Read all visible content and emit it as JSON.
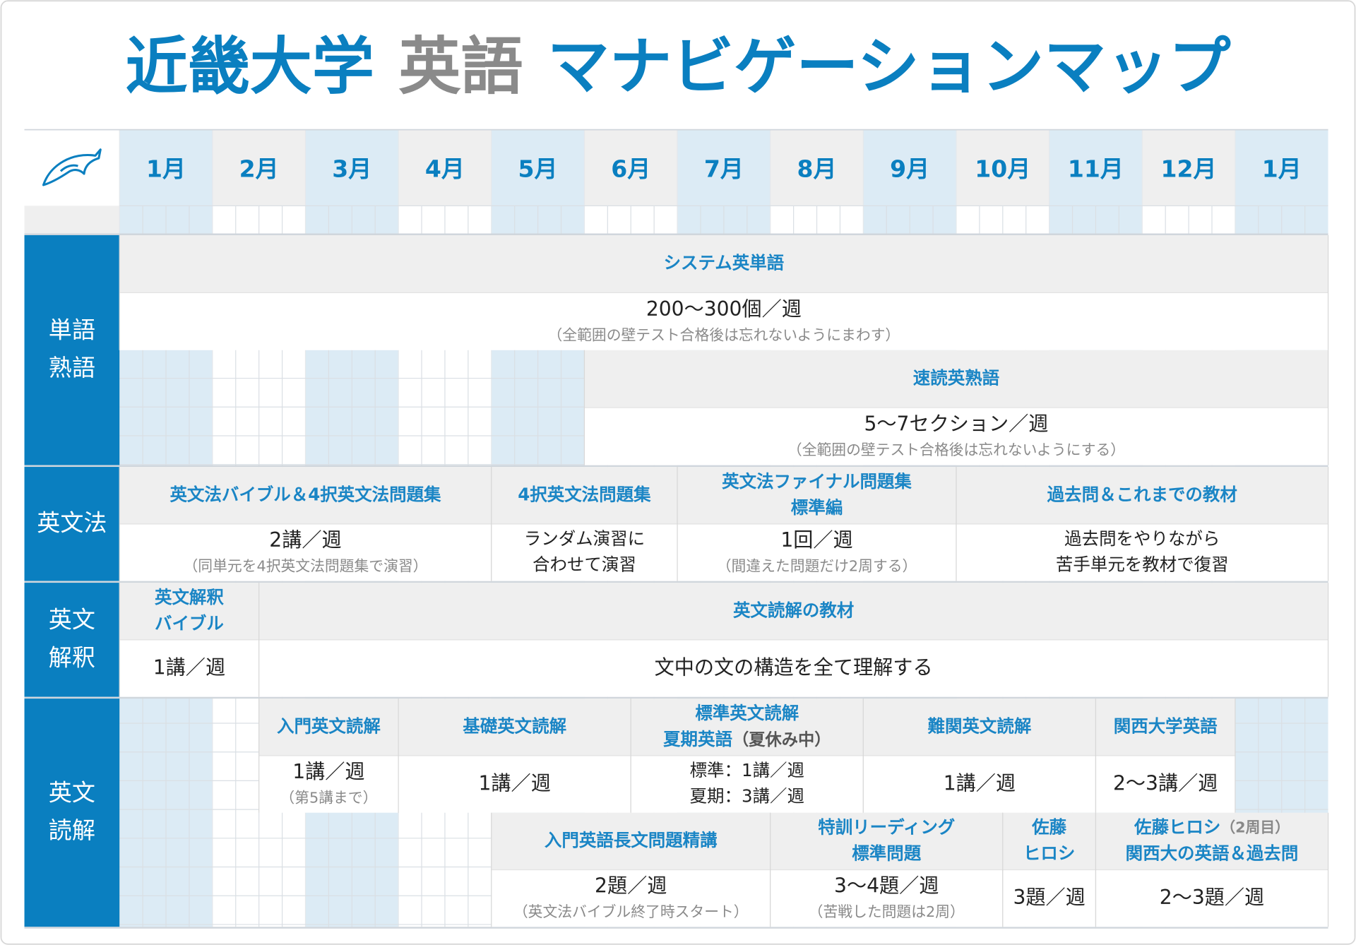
{
  "header": {
    "title": [
      "近畿大学",
      "英語",
      "マナビゲーションマップ"
    ]
  },
  "months": [
    "1月",
    "2月",
    "3月",
    "4月",
    "5月",
    "6月",
    "7月",
    "8月",
    "9月",
    "10月",
    "11月",
    "12月",
    "1月"
  ],
  "sections": [
    {
      "label": [
        "単語",
        "熟語"
      ],
      "items": [
        {
          "title": [
            "システム英単語"
          ],
          "lines": [
            "200〜300個／週"
          ],
          "note": "（全範囲の壁テスト合格後は忘れないようにまわす）"
        },
        {
          "title": [
            "速読英熟語"
          ],
          "lines": [
            "5〜7セクション／週"
          ],
          "note": "（全範囲の壁テスト合格後は忘れないようにする）"
        }
      ]
    },
    {
      "label": [
        "英文法"
      ],
      "items": [
        {
          "title": [
            "英文法バイブル＆4択英文法問題集"
          ],
          "lines": [
            "2講／週"
          ],
          "note": "（同単元を4択英文法問題集で演習）"
        },
        {
          "title": [
            "4択英文法問題集"
          ],
          "lines": [
            "ランダム演習に",
            "合わせて演習"
          ]
        },
        {
          "title": [
            "英文法ファイナル問題集",
            "標準編"
          ],
          "lines": [
            "1回／週"
          ],
          "note": "（間違えた問題だけ2周する）"
        },
        {
          "title": [
            "過去問＆これまでの教材"
          ],
          "lines": [
            "過去問をやりながら",
            "苦手単元を教材で復習"
          ]
        }
      ]
    },
    {
      "label": [
        "英文",
        "解釈"
      ],
      "items": [
        {
          "title": [
            "英文解釈",
            "バイブル"
          ],
          "lines": [
            "1講／週"
          ]
        },
        {
          "title": [
            "英文読解の教材"
          ],
          "lines": [
            "文中の文の構造を全て理解する"
          ]
        }
      ]
    },
    {
      "label": [
        "英文",
        "読解"
      ],
      "items": [
        {
          "title": [
            "入門英文読解"
          ],
          "lines": [
            "1講／週"
          ],
          "note": "（第5講まで）"
        },
        {
          "title": [
            "基礎英文読解"
          ],
          "lines": [
            "1講／週"
          ]
        },
        {
          "title": [
            "標準英文読解",
            "夏期英語"
          ],
          "title_suffix": "（夏休み中）",
          "lines": [
            "標準：1講／週",
            "夏期：3講／週"
          ]
        },
        {
          "title": [
            "難関英文読解"
          ],
          "lines": [
            "1講／週"
          ]
        },
        {
          "title": [
            "関西大学英語"
          ],
          "lines": [
            "2〜3講／週"
          ]
        },
        {
          "title": [
            "入門英語長文問題精講"
          ],
          "lines": [
            "2題／週"
          ],
          "note": "（英文法バイブル終了時スタート）"
        },
        {
          "title": [
            "特訓リーディング",
            "標準問題"
          ],
          "lines": [
            "3〜4題／週"
          ],
          "note": "（苦戦した問題は2周）"
        },
        {
          "title": [
            "佐藤",
            "ヒロシ"
          ],
          "lines": [
            "3題／週"
          ]
        },
        {
          "title": [
            "佐藤ヒロシ",
            "関西大の英語＆過去問"
          ],
          "title_suffix": "（2周目）",
          "lines": [
            "2〜3題／週"
          ]
        }
      ]
    }
  ]
}
